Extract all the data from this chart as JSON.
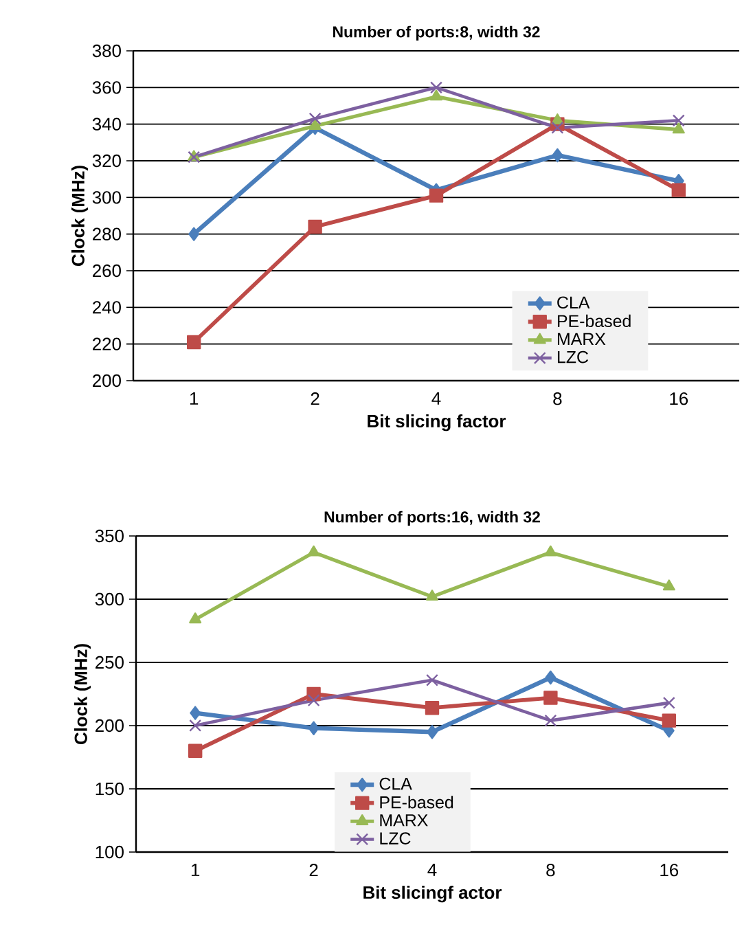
{
  "chart_data": [
    {
      "type": "line",
      "title": "Number of ports:8, width 32",
      "xlabel": "Bit slicing factor",
      "ylabel": "Clock (MHz)",
      "categories": [
        "1",
        "2",
        "4",
        "8",
        "16"
      ],
      "ylim": [
        200,
        380
      ],
      "yticks": [
        200,
        220,
        240,
        260,
        280,
        300,
        320,
        340,
        360,
        380
      ],
      "grid": "y",
      "legend": "bottom right",
      "series": [
        {
          "name": "CLA",
          "color": "#4a7ebb",
          "marker": "diamond",
          "values": [
            280,
            338,
            304,
            323,
            309
          ]
        },
        {
          "name": "PE-based",
          "color": "#be4b48",
          "marker": "square",
          "values": [
            221,
            284,
            301,
            340,
            304
          ]
        },
        {
          "name": "MARX",
          "color": "#98b954",
          "marker": "triangle",
          "values": [
            322,
            339,
            355,
            342,
            337
          ]
        },
        {
          "name": "LZC",
          "color": "#7d60a0",
          "marker": "cross",
          "values": [
            322,
            343,
            360,
            338,
            342
          ]
        }
      ]
    },
    {
      "type": "line",
      "title": "Number of ports:16, width 32",
      "xlabel": "Bit slicingf actor",
      "ylabel": "Clock (MHz)",
      "categories": [
        "1",
        "2",
        "4",
        "8",
        "16"
      ],
      "ylim": [
        100,
        350
      ],
      "yticks": [
        100,
        150,
        200,
        250,
        300,
        350
      ],
      "grid": "y",
      "legend": "bottom",
      "series": [
        {
          "name": "CLA",
          "color": "#4a7ebb",
          "marker": "diamond",
          "values": [
            210,
            198,
            195,
            238,
            196
          ]
        },
        {
          "name": "PE-based",
          "color": "#be4b48",
          "marker": "square",
          "values": [
            180,
            225,
            214,
            222,
            204
          ]
        },
        {
          "name": "MARX",
          "color": "#98b954",
          "marker": "triangle",
          "values": [
            284,
            337,
            302,
            337,
            310
          ]
        },
        {
          "name": "LZC",
          "color": "#7d60a0",
          "marker": "cross",
          "values": [
            200,
            220,
            236,
            204,
            218
          ]
        }
      ]
    }
  ]
}
